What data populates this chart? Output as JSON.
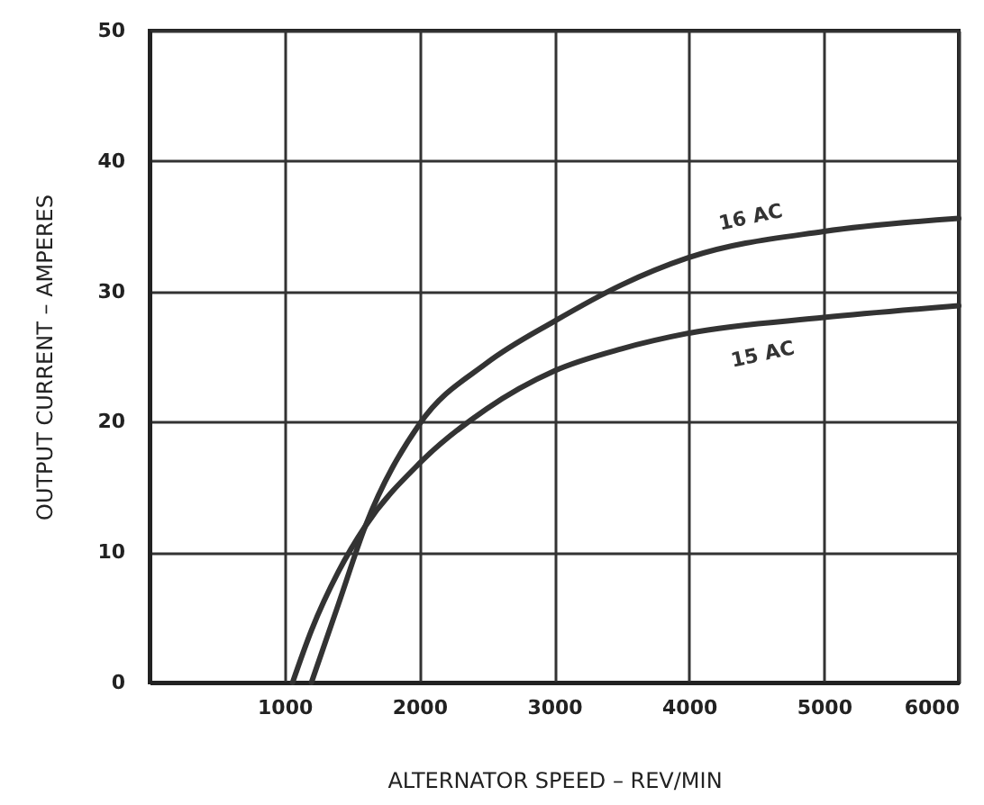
{
  "chart_data": {
    "type": "line",
    "xlabel": "ALTERNATOR SPEED – REV/MIN",
    "ylabel": "OUTPUT CURRENT – AMPERES",
    "xlim": [
      0,
      6000
    ],
    "xticks": [
      1000,
      2000,
      3000,
      4000,
      5000,
      6000
    ],
    "ylim": [
      0,
      50
    ],
    "yticks": [
      0,
      10,
      20,
      30,
      40,
      50
    ],
    "grid": true,
    "series": [
      {
        "name": "16 AC",
        "color": "#333333",
        "x": [
          1200,
          1400,
          1600,
          2000,
          2500,
          3000,
          3500,
          4000,
          5000,
          6000
        ],
        "values": [
          0,
          6,
          12,
          19.8,
          24.5,
          27.7,
          30.5,
          32.6,
          34.6,
          35.6
        ]
      },
      {
        "name": "15 AC",
        "color": "#333333",
        "x": [
          1060,
          1200,
          1400,
          1600,
          2000,
          2500,
          3000,
          3500,
          4000,
          5000,
          6000
        ],
        "values": [
          0,
          4,
          8.5,
          12,
          16.8,
          21,
          23.9,
          25.6,
          26.8,
          28,
          28.9
        ]
      }
    ]
  }
}
